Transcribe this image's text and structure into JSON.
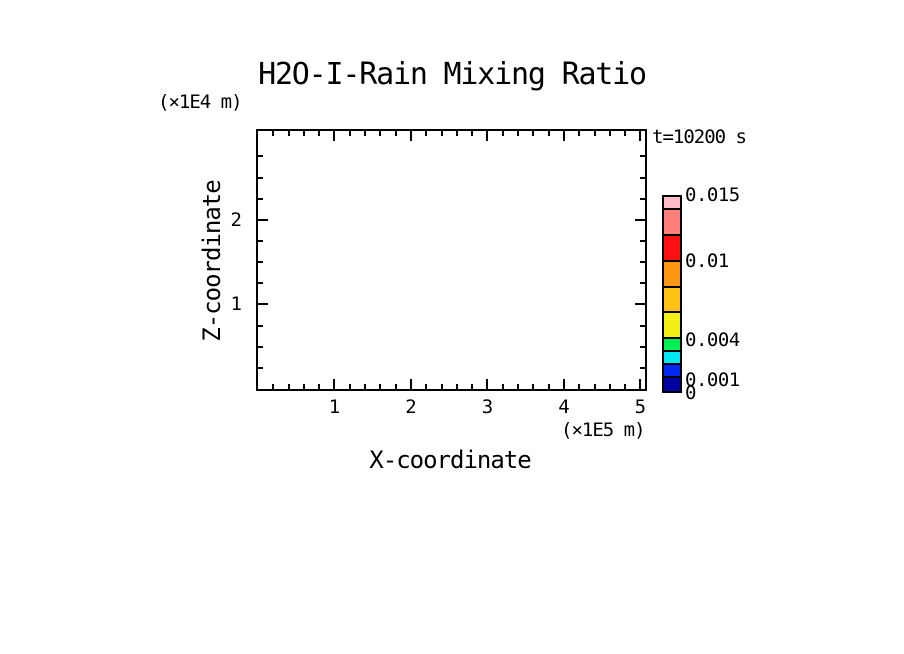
{
  "title": "H2O-I-Rain Mixing Ratio",
  "time_annotation": "t=10200 s",
  "x_axis": {
    "label": "X-coordinate",
    "unit_label": "(×1E5 m)",
    "major_ticks": [
      {
        "value": 1,
        "label": "1"
      },
      {
        "value": 2,
        "label": "2"
      },
      {
        "value": 3,
        "label": "3"
      },
      {
        "value": 4,
        "label": "4"
      },
      {
        "value": 5,
        "label": "5"
      }
    ]
  },
  "z_axis": {
    "label": "Z-coordinate",
    "unit_label": "(×1E4 m)",
    "major_ticks": [
      {
        "value": 1,
        "label": "1"
      },
      {
        "value": 2,
        "label": "2"
      }
    ]
  },
  "colorbar": {
    "segments_top_to_bottom": [
      {
        "color": "#FFBCC8",
        "from": 0.014,
        "to": 0.015
      },
      {
        "color": "#FF7F7A",
        "from": 0.012,
        "to": 0.014
      },
      {
        "color": "#FF1010",
        "from": 0.01,
        "to": 0.012
      },
      {
        "color": "#FF9614",
        "from": 0.008,
        "to": 0.01
      },
      {
        "color": "#FFC014",
        "from": 0.006,
        "to": 0.008
      },
      {
        "color": "#F0F014",
        "from": 0.004,
        "to": 0.006
      },
      {
        "color": "#00F055",
        "from": 0.003,
        "to": 0.004
      },
      {
        "color": "#00E8F0",
        "from": 0.002,
        "to": 0.003
      },
      {
        "color": "#0028F0",
        "from": 0.001,
        "to": 0.002
      },
      {
        "color": "#0000A0",
        "from": 0.0,
        "to": 0.001
      }
    ],
    "labels": [
      {
        "value": 0.015,
        "text": "0.015"
      },
      {
        "value": 0.01,
        "text": "0.01"
      },
      {
        "value": 0.004,
        "text": "0.004"
      },
      {
        "value": 0.001,
        "text": "0.001"
      },
      {
        "value": 0,
        "text": "0"
      }
    ]
  },
  "chart_data": {
    "type": "heatmap",
    "title": "H2O-I-Rain Mixing Ratio",
    "annotation": "t=10200 s",
    "xlabel": "X-coordinate",
    "x_unit": "(×1E5 m)",
    "xlim": [
      0,
      5.06
    ],
    "x_major_ticks": [
      1,
      2,
      3,
      4,
      5
    ],
    "x_minor_tick_step": 0.2,
    "ylabel": "Z-coordinate",
    "y_unit": "(×1E4 m)",
    "ylim": [
      0,
      3.05
    ],
    "y_major_ticks": [
      1,
      2
    ],
    "y_minor_tick_step": 0.25,
    "grid": false,
    "legend_position": "right colorbar",
    "color_levels": [
      0,
      0.001,
      0.002,
      0.003,
      0.004,
      0.006,
      0.008,
      0.01,
      0.012,
      0.014,
      0.015
    ],
    "level_colors_low_to_high": [
      "#0000A0",
      "#0028F0",
      "#00E8F0",
      "#00F055",
      "#F0F014",
      "#FFC014",
      "#FF9614",
      "#FF1010",
      "#FF7F7A",
      "#FFBCC8"
    ],
    "field_values": "uniformly below lowest contour level (plot interior entirely blank/white at t=10200 s)"
  }
}
